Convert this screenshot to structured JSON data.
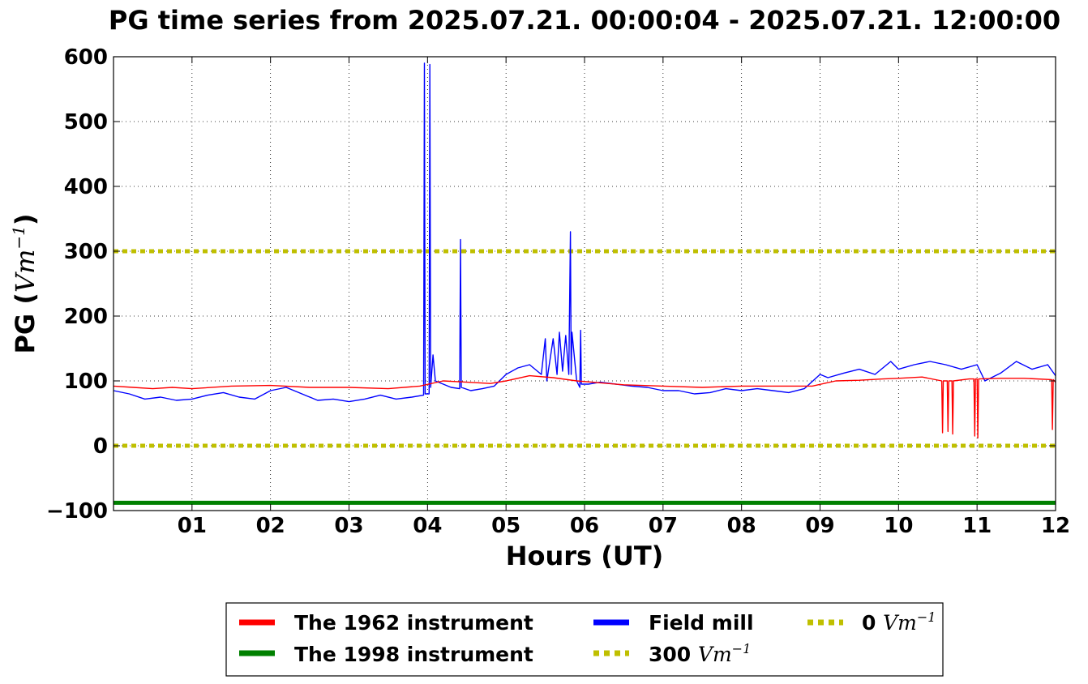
{
  "chart_data": {
    "type": "line",
    "title": "PG time series from 2025.07.21. 00:00:04 - 2025.07.21. 12:00:00",
    "xlabel": "Hours (UT)",
    "ylabel_text": "PG (",
    "ylabel_unit": "Vm",
    "ylabel_exp": "−1",
    "ylabel_close": ")",
    "xlim": [
      0,
      12
    ],
    "ylim": [
      -100,
      600
    ],
    "grid": true,
    "legend_position": "bottom-center",
    "x_ticks": [
      {
        "value": 1,
        "label": "01"
      },
      {
        "value": 2,
        "label": "02"
      },
      {
        "value": 3,
        "label": "03"
      },
      {
        "value": 4,
        "label": "04"
      },
      {
        "value": 5,
        "label": "05"
      },
      {
        "value": 6,
        "label": "06"
      },
      {
        "value": 7,
        "label": "07"
      },
      {
        "value": 8,
        "label": "08"
      },
      {
        "value": 9,
        "label": "09"
      },
      {
        "value": 10,
        "label": "10"
      },
      {
        "value": 11,
        "label": "11"
      },
      {
        "value": 12,
        "label": "12"
      }
    ],
    "y_ticks": [
      {
        "value": -100,
        "label": "−100"
      },
      {
        "value": 0,
        "label": "0"
      },
      {
        "value": 100,
        "label": "100"
      },
      {
        "value": 200,
        "label": "200"
      },
      {
        "value": 300,
        "label": "300"
      },
      {
        "value": 400,
        "label": "400"
      },
      {
        "value": 500,
        "label": "500"
      },
      {
        "value": 600,
        "label": "600"
      }
    ],
    "series": [
      {
        "name": "The 1962 instrument",
        "color": "#ff0000",
        "style": "solid",
        "x": [
          0,
          0.25,
          0.5,
          0.75,
          1,
          1.5,
          2,
          2.5,
          3,
          3.5,
          3.9,
          4.2,
          4.5,
          4.8,
          5,
          5.3,
          5.6,
          5.9,
          6.1,
          6.5,
          7,
          7.5,
          8,
          8.5,
          8.9,
          9.2,
          9.5,
          9.8,
          10,
          10.3,
          10.55,
          10.56,
          10.57,
          10.62,
          10.63,
          10.64,
          10.68,
          10.69,
          10.7,
          10.9,
          10.96,
          10.97,
          10.98,
          11.0,
          11.01,
          11.02,
          11.3,
          11.6,
          11.95,
          11.96,
          11.97,
          12
        ],
        "y": [
          92,
          90,
          88,
          90,
          88,
          92,
          93,
          90,
          90,
          88,
          92,
          100,
          98,
          96,
          100,
          108,
          105,
          100,
          98,
          94,
          92,
          90,
          92,
          92,
          92,
          100,
          101,
          103,
          104,
          106,
          100,
          20,
          100,
          100,
          22,
          100,
          100,
          18,
          100,
          103,
          103,
          15,
          103,
          103,
          12,
          103,
          104,
          104,
          102,
          25,
          102,
          98
        ]
      },
      {
        "name": "The 1998 instrument",
        "color": "#008000",
        "style": "solid",
        "x": [
          0,
          12
        ],
        "y": [
          -88,
          -88
        ]
      },
      {
        "name": "Field mill",
        "color": "#0000ff",
        "style": "solid",
        "x": [
          0,
          0.2,
          0.4,
          0.6,
          0.8,
          1.0,
          1.2,
          1.4,
          1.6,
          1.8,
          2.0,
          2.2,
          2.4,
          2.6,
          2.8,
          3.0,
          3.2,
          3.4,
          3.6,
          3.8,
          3.95,
          3.96,
          3.97,
          4.02,
          4.03,
          4.04,
          4.07,
          4.1,
          4.2,
          4.3,
          4.41,
          4.42,
          4.43,
          4.55,
          4.7,
          4.85,
          5.0,
          5.15,
          5.3,
          5.45,
          5.5,
          5.52,
          5.6,
          5.65,
          5.68,
          5.72,
          5.76,
          5.8,
          5.82,
          5.83,
          5.84,
          5.9,
          5.94,
          5.95,
          5.96,
          6.05,
          6.2,
          6.4,
          6.6,
          6.8,
          7.0,
          7.2,
          7.4,
          7.6,
          7.8,
          8.0,
          8.2,
          8.4,
          8.6,
          8.8,
          9.0,
          9.1,
          9.3,
          9.5,
          9.7,
          9.9,
          10.0,
          10.2,
          10.4,
          10.6,
          10.8,
          11.0,
          11.1,
          11.3,
          11.5,
          11.7,
          11.9,
          12.0
        ],
        "y": [
          85,
          80,
          72,
          75,
          70,
          72,
          78,
          82,
          75,
          72,
          85,
          90,
          80,
          70,
          72,
          68,
          72,
          78,
          72,
          75,
          78,
          590,
          80,
          80,
          588,
          90,
          140,
          100,
          95,
          90,
          88,
          318,
          90,
          85,
          88,
          92,
          110,
          120,
          125,
          110,
          165,
          100,
          165,
          110,
          175,
          115,
          170,
          110,
          330,
          110,
          175,
          100,
          90,
          178,
          95,
          95,
          98,
          95,
          92,
          90,
          85,
          85,
          80,
          82,
          88,
          85,
          88,
          85,
          82,
          88,
          110,
          105,
          112,
          118,
          110,
          130,
          118,
          125,
          130,
          125,
          118,
          125,
          100,
          112,
          130,
          118,
          125,
          108
        ]
      }
    ],
    "reference_lines": [
      {
        "name_value": "300",
        "name_unit": "Vm",
        "name_exp": "−1",
        "value": 300,
        "color": "#bfbf00",
        "style": "dotted"
      },
      {
        "name_value": "0",
        "name_unit": "Vm",
        "name_exp": "−1",
        "value": 0,
        "color": "#bfbf00",
        "style": "dotted"
      }
    ]
  }
}
